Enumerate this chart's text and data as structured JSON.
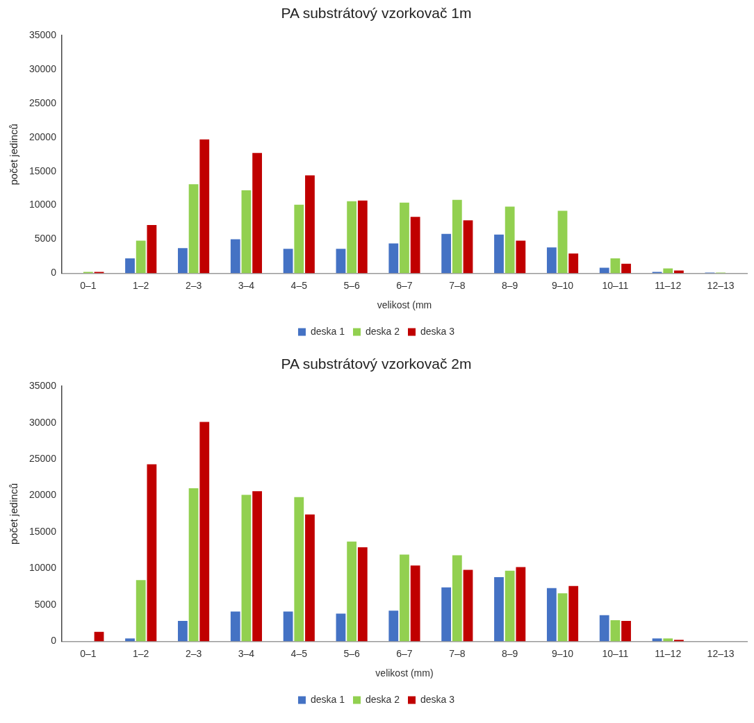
{
  "chart_data": [
    {
      "type": "bar",
      "title": "PA substrátový vzorkovač 1m",
      "xlabel": "velikost (mm",
      "ylabel": "počet jedinců",
      "categories": [
        "0–1",
        "1–2",
        "2–3",
        "3–4",
        "4–5",
        "5–6",
        "6–7",
        "7–8",
        "8–9",
        "9–10",
        "10–11",
        "11–12",
        "12–13"
      ],
      "series": [
        {
          "name": "deska 1",
          "color": "#4472c4",
          "values": [
            0,
            2200,
            3700,
            5000,
            3600,
            3600,
            4400,
            5800,
            5700,
            3800,
            800,
            200,
            100
          ]
        },
        {
          "name": "deska 2",
          "color": "#92d050",
          "values": [
            200,
            4800,
            13100,
            12200,
            10100,
            10600,
            10400,
            10800,
            9800,
            9200,
            2200,
            700,
            100
          ]
        },
        {
          "name": "deska 3",
          "color": "#c00000",
          "values": [
            200,
            7100,
            19700,
            17700,
            14400,
            10700,
            8300,
            7800,
            4800,
            2900,
            1400,
            400,
            0
          ]
        }
      ],
      "ylim": [
        0,
        35000
      ],
      "yticks": [
        0,
        5000,
        10000,
        15000,
        20000,
        25000,
        30000,
        35000
      ],
      "grid": false,
      "legend": "bottom"
    },
    {
      "type": "bar",
      "title": "PA substrátový vzorkovač 2m",
      "xlabel": "velikost (mm)",
      "ylabel": "počet jedinců",
      "categories": [
        "0–1",
        "1–2",
        "2–3",
        "3–4",
        "4–5",
        "5–6",
        "6–7",
        "7–8",
        "8–9",
        "9–10",
        "10–11",
        "11–12",
        "12–13"
      ],
      "series": [
        {
          "name": "deska 1",
          "color": "#4472c4",
          "values": [
            0,
            400,
            2800,
            4100,
            4100,
            3800,
            4200,
            7400,
            8800,
            7300,
            3600,
            400,
            0
          ]
        },
        {
          "name": "deska 2",
          "color": "#92d050",
          "values": [
            0,
            8400,
            21000,
            20100,
            19800,
            13700,
            11900,
            11800,
            9700,
            6600,
            2900,
            400,
            0
          ]
        },
        {
          "name": "deska 3",
          "color": "#c00000",
          "values": [
            1300,
            24300,
            30100,
            20600,
            17400,
            12900,
            10400,
            9800,
            10200,
            7600,
            2800,
            200,
            0
          ]
        }
      ],
      "ylim": [
        0,
        35000
      ],
      "yticks": [
        0,
        5000,
        10000,
        15000,
        20000,
        25000,
        30000,
        35000
      ],
      "grid": false,
      "legend": "bottom"
    }
  ]
}
